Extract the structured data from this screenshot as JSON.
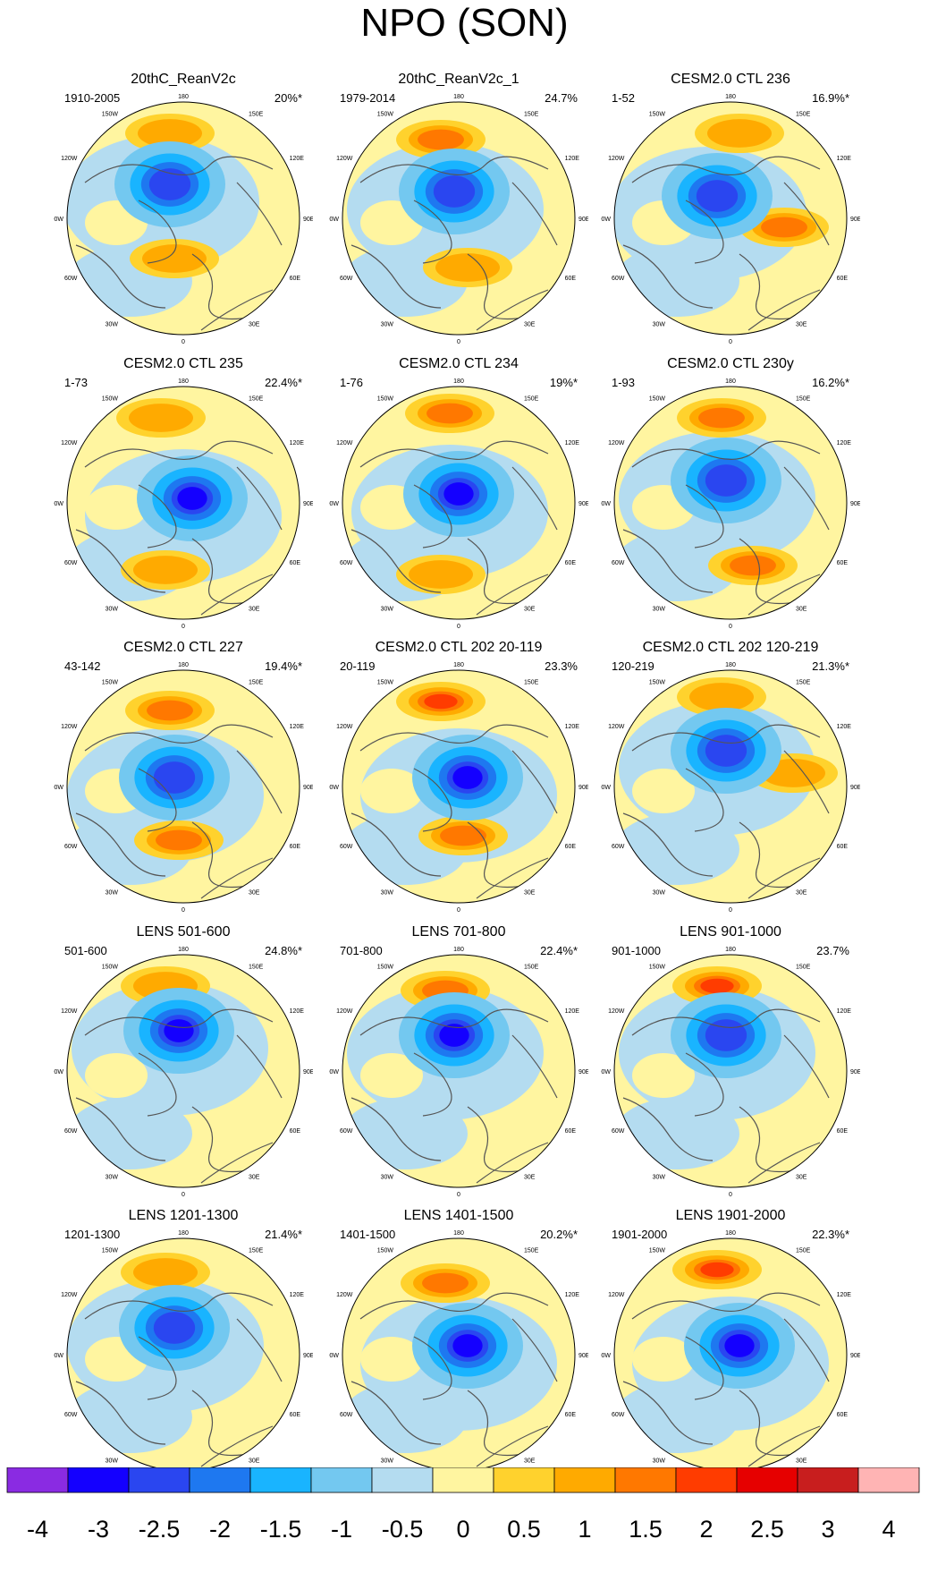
{
  "figure": {
    "title": "NPO (SON)",
    "panels": [
      {
        "title": "20thC_ReanV2c",
        "range": "1910-2005",
        "pct": "20%*"
      },
      {
        "title": "20thC_ReanV2c_1",
        "range": "1979-2014",
        "pct": "24.7%"
      },
      {
        "title": "CESM2.0 CTL 236",
        "range": "1-52",
        "pct": "16.9%*"
      },
      {
        "title": "CESM2.0 CTL 235",
        "range": "1-73",
        "pct": "22.4%*"
      },
      {
        "title": "CESM2.0 CTL 234",
        "range": "1-76",
        "pct": "19%*"
      },
      {
        "title": "CESM2.0 CTL 230y",
        "range": "1-93",
        "pct": "16.2%*"
      },
      {
        "title": "CESM2.0 CTL 227",
        "range": "43-142",
        "pct": "19.4%*"
      },
      {
        "title": "CESM2.0 CTL 202 20-119",
        "range": "20-119",
        "pct": "23.3%"
      },
      {
        "title": "CESM2.0 CTL 202 120-219",
        "range": "120-219",
        "pct": "21.3%*"
      },
      {
        "title": "LENS 501-600",
        "range": "501-600",
        "pct": "24.8%*"
      },
      {
        "title": "LENS 701-800",
        "range": "701-800",
        "pct": "22.4%*"
      },
      {
        "title": "LENS 901-1000",
        "range": "901-1000",
        "pct": "23.7%"
      },
      {
        "title": "LENS 1201-1300",
        "range": "1201-1300",
        "pct": "21.4%*"
      },
      {
        "title": "LENS 1401-1500",
        "range": "1401-1500",
        "pct": "20.2%*"
      },
      {
        "title": "LENS 1901-2000",
        "range": "1901-2000",
        "pct": "22.3%*"
      }
    ],
    "longitude_labels": {
      "top": "180",
      "bottom": "0",
      "upper_left": "150W",
      "upper_right": "150E",
      "left_upper": "120W",
      "right_upper": "120E",
      "left": "90W",
      "right": "90E",
      "left_lower": "60W",
      "right_lower": "60E",
      "lower_left": "30W",
      "lower_right": "30E"
    }
  },
  "colorbar": {
    "labels": [
      "-4",
      "-3",
      "-2.5",
      "-2",
      "-1.5",
      "-1",
      "-0.5",
      "0",
      "0.5",
      "1",
      "1.5",
      "2",
      "2.5",
      "3",
      "4"
    ],
    "colors": [
      "#8a2be2",
      "#1400ff",
      "#2a46f0",
      "#1e78f0",
      "#19b4ff",
      "#73c8f0",
      "#b4dcf0",
      "#fff5a0",
      "#ffd22d",
      "#ffaa00",
      "#ff7800",
      "#ff3c00",
      "#e60000",
      "#c81e1e",
      "#ffb4b4"
    ]
  }
}
